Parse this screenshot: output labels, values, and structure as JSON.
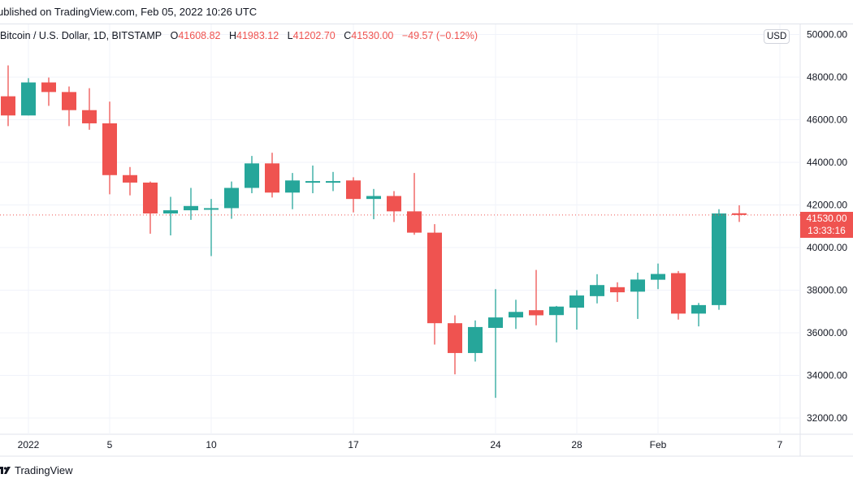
{
  "header": {
    "published": "ublished on TradingView.com, Feb 05, 2022 10:26 UTC"
  },
  "legend": {
    "symbol": "Bitcoin / U.S. Dollar, 1D, BITSTAMP",
    "o_label": "O",
    "o": "41608.82",
    "h_label": "H",
    "h": "41983.12",
    "l_label": "L",
    "l": "41202.70",
    "c_label": "C",
    "c": "41530.00",
    "change": "−49.57 (−0.12%)"
  },
  "currency_badge": "USD",
  "last_price": {
    "price": "41530.00",
    "countdown": "13:33:16"
  },
  "footer": {
    "brand": "TradingView",
    "logo_icon": "tradingview-logo-icon"
  },
  "colors": {
    "up": "#26a69a",
    "down": "#ef5350",
    "grid": "#f0f3fa"
  },
  "chart_data": {
    "type": "candlestick",
    "interval": "1D",
    "ylim": [
      31000,
      50500
    ],
    "grid": true,
    "y_ticks": [
      "50000.00",
      "48000.00",
      "46000.00",
      "44000.00",
      "42000.00",
      "40000.00",
      "38000.00",
      "36000.00",
      "34000.00",
      "32000.00"
    ],
    "x_ticks": [
      {
        "date": "2022-01-01",
        "label": "2022"
      },
      {
        "date": "2022-01-05",
        "label": "5"
      },
      {
        "date": "2022-01-10",
        "label": "10"
      },
      {
        "date": "2022-01-17",
        "label": "17"
      },
      {
        "date": "2022-01-24",
        "label": "24"
      },
      {
        "date": "2022-01-28",
        "label": "28"
      },
      {
        "date": "2022-02-01",
        "label": "Feb"
      },
      {
        "date": "2022-02-07",
        "label": "7"
      }
    ],
    "candles": [
      {
        "date": "2021-12-31",
        "o": 47100,
        "h": 48550,
        "l": 45700,
        "c": 46200
      },
      {
        "date": "2022-01-01",
        "o": 46200,
        "h": 47950,
        "l": 46200,
        "c": 47750
      },
      {
        "date": "2022-01-02",
        "o": 47750,
        "h": 47980,
        "l": 46650,
        "c": 47300
      },
      {
        "date": "2022-01-03",
        "o": 47300,
        "h": 47560,
        "l": 45700,
        "c": 46450
      },
      {
        "date": "2022-01-04",
        "o": 46450,
        "h": 47480,
        "l": 45530,
        "c": 45830
      },
      {
        "date": "2022-01-05",
        "o": 45830,
        "h": 46850,
        "l": 42500,
        "c": 43400
      },
      {
        "date": "2022-01-06",
        "o": 43400,
        "h": 43780,
        "l": 42450,
        "c": 43050
      },
      {
        "date": "2022-01-07",
        "o": 43050,
        "h": 43100,
        "l": 40650,
        "c": 41600
      },
      {
        "date": "2022-01-08",
        "o": 41600,
        "h": 42380,
        "l": 40570,
        "c": 41750
      },
      {
        "date": "2022-01-09",
        "o": 41750,
        "h": 42800,
        "l": 41300,
        "c": 41950
      },
      {
        "date": "2022-01-10",
        "o": 41850,
        "h": 42280,
        "l": 39600,
        "c": 41850
      },
      {
        "date": "2022-01-11",
        "o": 41850,
        "h": 43100,
        "l": 41350,
        "c": 42800
      },
      {
        "date": "2022-01-12",
        "o": 42800,
        "h": 44300,
        "l": 42550,
        "c": 43950
      },
      {
        "date": "2022-01-13",
        "o": 43950,
        "h": 44450,
        "l": 42350,
        "c": 42580
      },
      {
        "date": "2022-01-14",
        "o": 42580,
        "h": 43500,
        "l": 41800,
        "c": 43150
      },
      {
        "date": "2022-01-15",
        "o": 43050,
        "h": 43850,
        "l": 42550,
        "c": 43120
      },
      {
        "date": "2022-01-16",
        "o": 43050,
        "h": 43550,
        "l": 42650,
        "c": 43120
      },
      {
        "date": "2022-01-17",
        "o": 43150,
        "h": 43300,
        "l": 41650,
        "c": 42280
      },
      {
        "date": "2022-01-18",
        "o": 42280,
        "h": 42750,
        "l": 41330,
        "c": 42420
      },
      {
        "date": "2022-01-19",
        "o": 42420,
        "h": 42650,
        "l": 41200,
        "c": 41700
      },
      {
        "date": "2022-01-20",
        "o": 41700,
        "h": 43500,
        "l": 40600,
        "c": 40700
      },
      {
        "date": "2022-01-21",
        "o": 40700,
        "h": 41100,
        "l": 35450,
        "c": 36450
      },
      {
        "date": "2022-01-22",
        "o": 36450,
        "h": 36820,
        "l": 34050,
        "c": 35050
      },
      {
        "date": "2022-01-23",
        "o": 35050,
        "h": 36580,
        "l": 34650,
        "c": 36270
      },
      {
        "date": "2022-01-24",
        "o": 36230,
        "h": 38050,
        "l": 32950,
        "c": 36720
      },
      {
        "date": "2022-01-25",
        "o": 36720,
        "h": 37550,
        "l": 36180,
        "c": 36980
      },
      {
        "date": "2022-01-26",
        "o": 37060,
        "h": 38950,
        "l": 36350,
        "c": 36820
      },
      {
        "date": "2022-01-27",
        "o": 36830,
        "h": 37260,
        "l": 35550,
        "c": 37230
      },
      {
        "date": "2022-01-28",
        "o": 37180,
        "h": 38000,
        "l": 36150,
        "c": 37750
      },
      {
        "date": "2022-01-29",
        "o": 37720,
        "h": 38750,
        "l": 37380,
        "c": 38240
      },
      {
        "date": "2022-01-30",
        "o": 38140,
        "h": 38370,
        "l": 37450,
        "c": 37900
      },
      {
        "date": "2022-01-31",
        "o": 37930,
        "h": 38820,
        "l": 36650,
        "c": 38500
      },
      {
        "date": "2022-02-01",
        "o": 38490,
        "h": 39250,
        "l": 38050,
        "c": 38760
      },
      {
        "date": "2022-02-02",
        "o": 38800,
        "h": 38900,
        "l": 36620,
        "c": 36900
      },
      {
        "date": "2022-02-03",
        "o": 36900,
        "h": 37400,
        "l": 36300,
        "c": 37300
      },
      {
        "date": "2022-02-04",
        "o": 37300,
        "h": 41800,
        "l": 37080,
        "c": 41600
      },
      {
        "date": "2022-02-05",
        "o": 41608.82,
        "h": 41983.12,
        "l": 41202.7,
        "c": 41530.0
      }
    ]
  }
}
